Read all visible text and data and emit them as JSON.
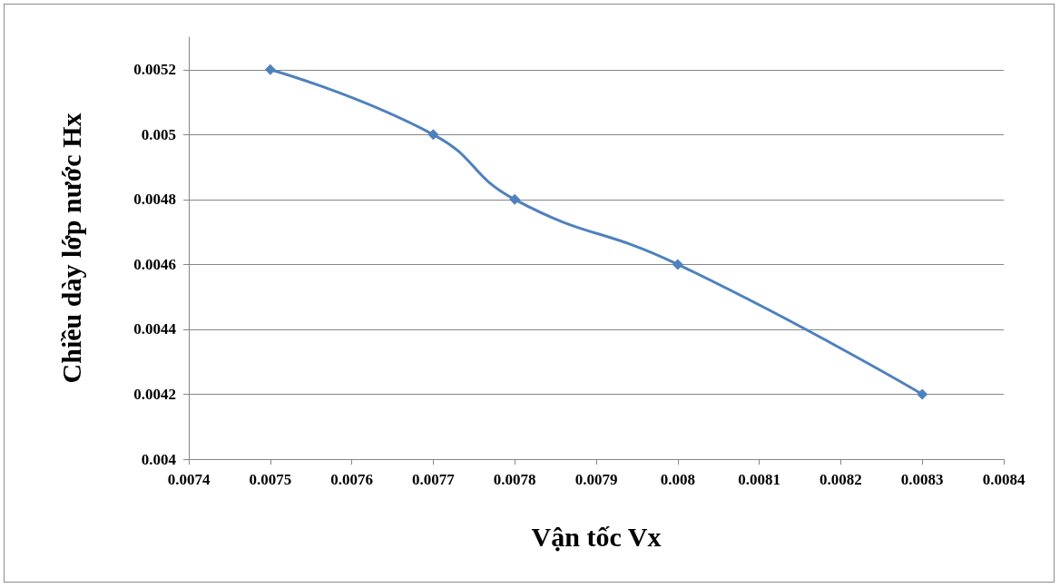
{
  "chart_data": {
    "type": "line",
    "xlabel": "Vận tốc Vx",
    "ylabel": "Chiều dày lớp nước Hx",
    "x": [
      0.0075,
      0.0077,
      0.0078,
      0.008,
      0.0083
    ],
    "series": [
      {
        "color": "#4f81bd",
        "values": [
          0.0052,
          0.005,
          0.0048,
          0.0046,
          0.0042
        ]
      }
    ],
    "xlim": [
      0.0074,
      0.0084
    ],
    "xticks": [
      0.0074,
      0.0075,
      0.0076,
      0.0077,
      0.0078,
      0.0079,
      0.008,
      0.0081,
      0.0082,
      0.0083,
      0.0084
    ],
    "ylim": [
      0.004,
      0.0053
    ],
    "yticks": [
      0.004,
      0.0042,
      0.0044,
      0.0046,
      0.0048,
      0.005,
      0.0052
    ],
    "grid": "y",
    "marker": "diamond",
    "line_style": "solid"
  }
}
